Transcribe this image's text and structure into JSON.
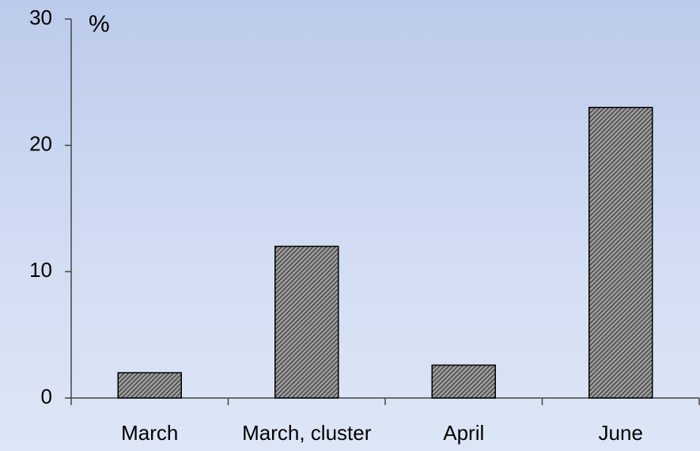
{
  "chart_data": {
    "type": "bar",
    "y_label": "%",
    "categories": [
      "March",
      "March, cluster",
      "April",
      "June"
    ],
    "values": [
      2,
      12,
      2.6,
      23
    ],
    "color": "#555555",
    "ylim": [
      0,
      30
    ],
    "yticks": [
      0,
      10,
      20,
      30
    ],
    "grid": false
  }
}
